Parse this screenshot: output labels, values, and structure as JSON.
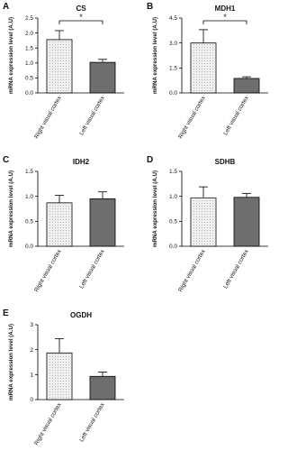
{
  "chart_data": [
    {
      "type": "bar",
      "panel": "A",
      "title": "CS",
      "ylabel": "mRNA expression level (A.U)",
      "categories": [
        "Right visual cortex",
        "Left visual cortex"
      ],
      "values": [
        1.78,
        1.02
      ],
      "errors": [
        0.3,
        0.1
      ],
      "colors": [
        "#efefef",
        "#6e6e6e"
      ],
      "ylim": [
        0,
        2.5
      ],
      "yticks": [
        {
          "value": 0,
          "label": "0.0"
        },
        0.5,
        {
          "value": 1,
          "label": "1.0"
        },
        1.5,
        {
          "value": 2,
          "label": "2.0"
        },
        2.5
      ],
      "annotation": "*"
    },
    {
      "type": "bar",
      "panel": "B",
      "title": "MDH1",
      "ylabel": "mRNA expression level (A.U)",
      "categories": [
        "Right visual cortex",
        "Left visual cortex"
      ],
      "values": [
        3.0,
        0.87
      ],
      "errors": [
        0.8,
        0.1
      ],
      "colors": [
        "#efefef",
        "#6e6e6e"
      ],
      "ylim": [
        0,
        4.5
      ],
      "yticks": [
        {
          "value": 0,
          "label": "0.0"
        },
        1.5,
        {
          "value": 3,
          "label": "3.0"
        },
        4.5
      ],
      "annotation": "*"
    },
    {
      "type": "bar",
      "panel": "C",
      "title": "IDH2",
      "ylabel": "mRNA expression level (A.U)",
      "categories": [
        "Right visual cortex",
        "Left visual cortex"
      ],
      "values": [
        0.87,
        0.95
      ],
      "errors": [
        0.15,
        0.14
      ],
      "colors": [
        "#efefef",
        "#6e6e6e"
      ],
      "ylim": [
        0,
        1.5
      ],
      "yticks": [
        {
          "value": 0,
          "label": "0.0"
        },
        0.5,
        {
          "value": 1,
          "label": "1.0"
        },
        1.5
      ]
    },
    {
      "type": "bar",
      "panel": "D",
      "title": "SDHB",
      "ylabel": "mRNA expression level (A.U)",
      "categories": [
        "Right visual cortex",
        "Left visual cortex"
      ],
      "values": [
        0.97,
        0.98
      ],
      "errors": [
        0.22,
        0.08
      ],
      "colors": [
        "#efefef",
        "#6e6e6e"
      ],
      "ylim": [
        0,
        1.5
      ],
      "yticks": [
        {
          "value": 0,
          "label": "0.0"
        },
        0.5,
        {
          "value": 1,
          "label": "1.0"
        },
        1.5
      ]
    },
    {
      "type": "bar",
      "panel": "E",
      "title": "OGDH",
      "ylabel": "mRNA expression level (A.U)",
      "categories": [
        "Right visual cortex",
        "Left visual cortex"
      ],
      "values": [
        1.87,
        0.93
      ],
      "errors": [
        0.57,
        0.17
      ],
      "colors": [
        "#efefef",
        "#6e6e6e"
      ],
      "ylim": [
        0,
        3
      ],
      "yticks": [
        0,
        1,
        2,
        3
      ]
    }
  ]
}
